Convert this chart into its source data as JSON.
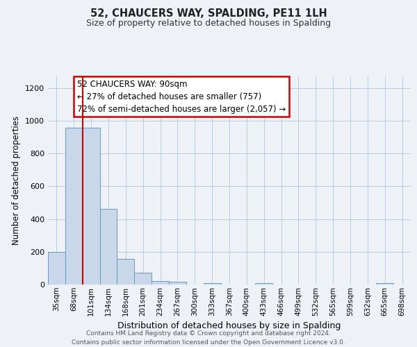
{
  "title": "52, CHAUCERS WAY, SPALDING, PE11 1LH",
  "subtitle": "Size of property relative to detached houses in Spalding",
  "xlabel": "Distribution of detached houses by size in Spalding",
  "ylabel": "Number of detached properties",
  "bin_labels": [
    "35sqm",
    "68sqm",
    "101sqm",
    "134sqm",
    "168sqm",
    "201sqm",
    "234sqm",
    "267sqm",
    "300sqm",
    "333sqm",
    "367sqm",
    "400sqm",
    "433sqm",
    "466sqm",
    "499sqm",
    "532sqm",
    "565sqm",
    "599sqm",
    "632sqm",
    "665sqm",
    "698sqm"
  ],
  "bar_heights": [
    200,
    955,
    955,
    460,
    155,
    70,
    22,
    15,
    0,
    10,
    0,
    0,
    8,
    0,
    0,
    0,
    0,
    0,
    0,
    8,
    0
  ],
  "bar_color": "#c8d8ea",
  "bar_edge_color": "#6699bb",
  "bar_width": 1.0,
  "vline_x": 1.5,
  "vline_color": "#cc0000",
  "ylim": [
    0,
    1270
  ],
  "annotation_text": "52 CHAUCERS WAY: 90sqm\n← 27% of detached houses are smaller (757)\n72% of semi-detached houses are larger (2,057) →",
  "annotation_box_color": "#ffffff",
  "annotation_box_edge": "#cc0000",
  "footer_text": "Contains HM Land Registry data © Crown copyright and database right 2024.\nContains public sector information licensed under the Open Government Licence v3.0.",
  "grid_color": "#b0c4d8",
  "background_color": "#eef2f7",
  "title_fontsize": 10.5,
  "subtitle_fontsize": 9,
  "ylabel_fontsize": 8.5,
  "xlabel_fontsize": 9,
  "tick_fontsize": 7.5,
  "annotation_fontsize": 8.5,
  "footer_fontsize": 6.5
}
